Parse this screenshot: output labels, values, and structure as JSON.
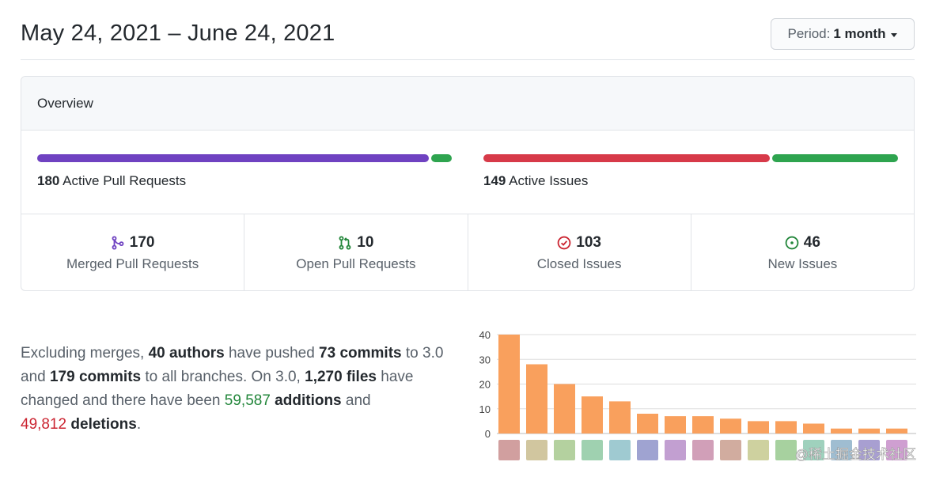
{
  "header": {
    "date_range": "May 24, 2021 – June 24, 2021",
    "period_label": "Period:",
    "period_value": "1 month"
  },
  "overview": {
    "title": "Overview",
    "pull_requests": {
      "count": "180",
      "label": "Active Pull Requests",
      "merged_fraction": 0.944,
      "colors": [
        "#6f42c1",
        "#2ea44f"
      ]
    },
    "issues": {
      "count": "149",
      "label": "Active Issues",
      "closed_fraction": 0.69,
      "colors": [
        "#d73a49",
        "#2ea44f"
      ]
    },
    "stats": [
      {
        "icon": "git-merge-icon",
        "value": "170",
        "label": "Merged Pull Requests",
        "color": "#6f42c1"
      },
      {
        "icon": "git-pull-request-icon",
        "value": "10",
        "label": "Open Pull Requests",
        "color": "#22863a"
      },
      {
        "icon": "issue-closed-icon",
        "value": "103",
        "label": "Closed Issues",
        "color": "#cb2431"
      },
      {
        "icon": "issue-opened-icon",
        "value": "46",
        "label": "New Issues",
        "color": "#22863a"
      }
    ]
  },
  "summary": {
    "p1": "Excluding merges, ",
    "authors": "40 authors",
    "p2": " have pushed ",
    "commits_branch": "73 commits",
    "p3": " to 3.0 and ",
    "commits_all": "179 commits",
    "p4": " to all branches. On 3.0, ",
    "files": "1,270 files",
    "p5": " have changed and there have been ",
    "additions_num": "59,587",
    "additions_word": " additions",
    "p6": " and ",
    "deletions_num": "49,812",
    "deletions_word": " deletions",
    "p7": "."
  },
  "chart_data": {
    "type": "bar",
    "values": [
      40,
      28,
      20,
      15,
      13,
      8,
      7,
      7,
      6,
      5,
      5,
      4,
      2,
      2,
      2
    ],
    "ylim": [
      0,
      40
    ],
    "yticks": [
      0,
      10,
      20,
      30,
      40
    ],
    "bar_color": "#f9a05d",
    "grid": true
  },
  "watermark": "@稀土掘金技术社区"
}
